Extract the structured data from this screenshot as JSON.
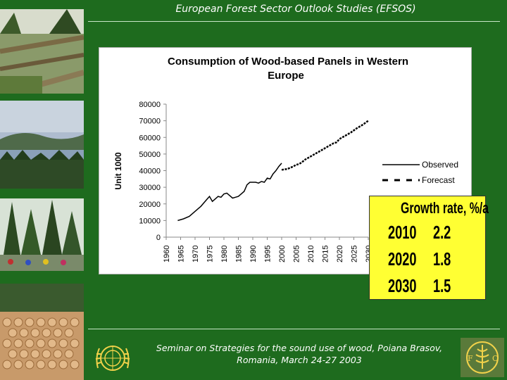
{
  "header": {
    "title": "European Forest Sector Outlook Studies (EFSOS)"
  },
  "photos": [
    "forest-felling-photo",
    "lake-forest-photo",
    "cyclists-forest-photo",
    "log-pile-photo"
  ],
  "chart_data": {
    "type": "line",
    "title": "Consumption of Wood-based Panels in Western Europe",
    "ylabel": "Unit 1000",
    "xlabel": "",
    "ylim": [
      0,
      80000
    ],
    "yticks": [
      0,
      10000,
      20000,
      30000,
      40000,
      50000,
      60000,
      70000,
      80000
    ],
    "xlim": [
      1960,
      2030
    ],
    "xticks": [
      1960,
      1965,
      1970,
      1975,
      1980,
      1985,
      1990,
      1995,
      2000,
      2005,
      2010,
      2015,
      2020,
      2025,
      2030
    ],
    "grid": false,
    "legend_position": "right",
    "series": [
      {
        "name": "Observed",
        "style": "solid",
        "x": [
          1964,
          1966,
          1968,
          1969,
          1971,
          1972,
          1974,
          1975,
          1976,
          1977,
          1978,
          1979,
          1980,
          1981,
          1982,
          1983,
          1984,
          1985,
          1986,
          1987,
          1988,
          1989,
          1990,
          1991,
          1992,
          1993,
          1994,
          1995,
          1996,
          1997,
          1998,
          1999,
          2000
        ],
        "values": [
          10000,
          11000,
          12500,
          14000,
          17000,
          18500,
          22500,
          24500,
          21500,
          23000,
          24500,
          24000,
          26000,
          26500,
          25000,
          23500,
          24000,
          24500,
          26000,
          27500,
          31500,
          33000,
          33000,
          33000,
          32500,
          33500,
          33000,
          35500,
          35000,
          38000,
          40000,
          42500,
          44500
        ]
      },
      {
        "name": "Forecast",
        "style": "dashed",
        "x": [
          2000,
          2002,
          2004,
          2005,
          2006,
          2007,
          2008,
          2010,
          2012,
          2014,
          2016,
          2018,
          2019,
          2020,
          2022,
          2024,
          2026,
          2028,
          2030
        ],
        "values": [
          40500,
          41000,
          42500,
          43500,
          44000,
          45000,
          46500,
          48500,
          50500,
          52500,
          54500,
          56500,
          57000,
          59000,
          61000,
          63000,
          65500,
          67500,
          70000
        ]
      }
    ]
  },
  "growth_box": {
    "title": "Growth rate, %/a",
    "rows": [
      {
        "year": "2010",
        "rate": "2.2"
      },
      {
        "year": "2020",
        "rate": "1.8"
      },
      {
        "year": "2030",
        "rate": "1.5"
      }
    ]
  },
  "footer": {
    "line1": "Seminar on Strategies for the sound use of wood, Poiana Brasov,",
    "line2": "Romania, March 24-27 2003"
  },
  "colors": {
    "background": "#1e6b1e",
    "highlight_box": "#ffff33",
    "line": "#000000"
  }
}
